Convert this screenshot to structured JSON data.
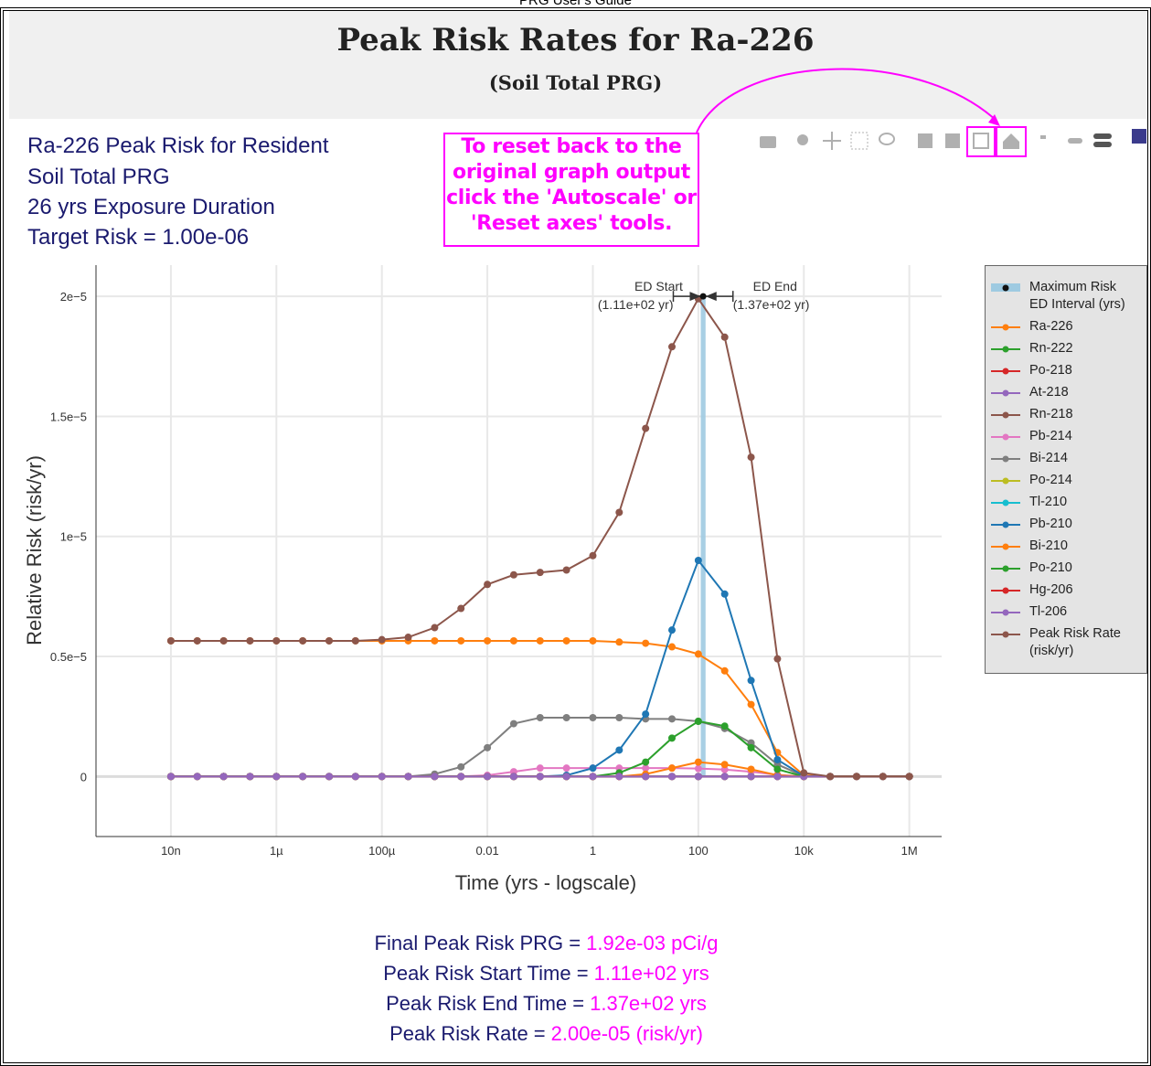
{
  "header": "PRG User's Guide",
  "title": "Peak Risk Rates for Ra-226",
  "subtitle": "(Soil Total PRG)",
  "info": [
    "Ra-226 Peak Risk for Resident",
    "Soil Total PRG",
    "26 yrs Exposure Duration",
    "Target Risk = 1.00e-06"
  ],
  "callout": [
    "To reset back to the",
    "original graph output",
    "click the 'Autoscale' or",
    "'Reset axes' tools."
  ],
  "summary": [
    {
      "label": "Final Peak Risk PRG =",
      "value": "1.92e-03 pCi/g"
    },
    {
      "label": "Peak Risk Start Time =",
      "value": "1.11e+02 yrs"
    },
    {
      "label": "Peak Risk End Time =",
      "value": "1.37e+02 yrs"
    },
    {
      "label": "Peak Risk Rate =",
      "value": "2.00e-05 (risk/yr)"
    }
  ],
  "chart_data": {
    "type": "line",
    "x_label": "Time (yrs - logscale)",
    "y_label": "Relative Risk (risk/yr)",
    "x_log": true,
    "grid": true,
    "xlim": [
      3.8e-10,
      4100000.0
    ],
    "ylim": [
      -2.5e-06,
      2.13e-05
    ],
    "xticks": [
      {
        "value": 1e-08,
        "label": "10n"
      },
      {
        "value": 1e-06,
        "label": "1µ"
      },
      {
        "value": 0.0001,
        "label": "100µ"
      },
      0.01,
      1,
      100,
      {
        "value": 10000,
        "label": "10k"
      },
      {
        "value": 1000000,
        "label": "1M"
      }
    ],
    "yticks": [
      0,
      {
        "value": 5e-06,
        "label": "0.5e−5"
      },
      {
        "value": 1e-05,
        "label": "1e−5"
      },
      {
        "value": 1.5e-05,
        "label": "1.5e−5"
      },
      {
        "value": 2e-05,
        "label": "2e−5"
      }
    ],
    "ed_interval": {
      "name": "Maximum Risk ED Interval (yrs)",
      "color": "#9ecae1",
      "x": [
        111,
        137
      ],
      "y": 2e-05,
      "start_label": [
        "ED Start",
        "(1.11e+02 yr)"
      ],
      "end_label": [
        "ED End",
        "(1.37e+02 yr)"
      ]
    },
    "x": [
      1e-08,
      3.16e-08,
      1e-07,
      3.16e-07,
      1e-06,
      3.16e-06,
      1e-05,
      3.16e-05,
      0.0001,
      0.000316,
      0.001,
      0.00316,
      0.01,
      0.0316,
      0.1,
      0.316,
      1,
      3.16,
      10,
      31.6,
      100,
      316,
      1000,
      3160,
      10000,
      31600,
      100000,
      316000,
      1000000
    ],
    "series": [
      {
        "name": "Ra-226",
        "color": "#ff7f0e",
        "values": [
          5.65e-06,
          5.65e-06,
          5.65e-06,
          5.65e-06,
          5.65e-06,
          5.65e-06,
          5.65e-06,
          5.65e-06,
          5.65e-06,
          5.65e-06,
          5.65e-06,
          5.65e-06,
          5.65e-06,
          5.65e-06,
          5.65e-06,
          5.65e-06,
          5.65e-06,
          5.6e-06,
          5.55e-06,
          5.4e-06,
          5.1e-06,
          4.4e-06,
          3e-06,
          1e-06,
          5e-08,
          0,
          0,
          0,
          0
        ]
      },
      {
        "name": "Rn-222",
        "color": "#2ca02c",
        "values": [
          0,
          0,
          0,
          0,
          0,
          0,
          0,
          0,
          0,
          0,
          0,
          0,
          0,
          0,
          0,
          0,
          0,
          0,
          0,
          0,
          0,
          0,
          0,
          0,
          0,
          0,
          0,
          0,
          0
        ]
      },
      {
        "name": "Po-218",
        "color": "#d62728",
        "values": [
          0,
          0,
          0,
          0,
          0,
          0,
          0,
          0,
          0,
          0,
          0,
          0,
          0,
          0,
          0,
          0,
          0,
          0,
          0,
          0,
          0,
          0,
          0,
          0,
          0,
          0,
          0,
          0,
          0
        ]
      },
      {
        "name": "At-218",
        "color": "#9467bd",
        "values": [
          0,
          0,
          0,
          0,
          0,
          0,
          0,
          0,
          0,
          0,
          0,
          0,
          0,
          0,
          0,
          0,
          0,
          0,
          0,
          0,
          0,
          0,
          0,
          0,
          0,
          0,
          0,
          0,
          0
        ]
      },
      {
        "name": "Rn-218",
        "color": "#8c564b",
        "values": [
          0,
          0,
          0,
          0,
          0,
          0,
          0,
          0,
          0,
          0,
          0,
          0,
          0,
          0,
          0,
          0,
          0,
          0,
          0,
          0,
          0,
          0,
          0,
          0,
          0,
          0,
          0,
          0,
          0
        ]
      },
      {
        "name": "Pb-214",
        "color": "#e377c2",
        "values": [
          0,
          0,
          0,
          0,
          0,
          0,
          0,
          0,
          0,
          0,
          0,
          0,
          5e-08,
          2e-07,
          3.5e-07,
          3.5e-07,
          3.5e-07,
          3.5e-07,
          3.5e-07,
          3.5e-07,
          3.3e-07,
          2.9e-07,
          2e-07,
          7e-08,
          0,
          0,
          0,
          0,
          0
        ]
      },
      {
        "name": "Bi-214",
        "color": "#7f7f7f",
        "values": [
          0,
          0,
          0,
          0,
          0,
          0,
          0,
          0,
          0,
          0,
          1e-07,
          4e-07,
          1.2e-06,
          2.2e-06,
          2.45e-06,
          2.45e-06,
          2.45e-06,
          2.45e-06,
          2.4e-06,
          2.4e-06,
          2.3e-06,
          2e-06,
          1.4e-06,
          5e-07,
          2e-08,
          0,
          0,
          0,
          0
        ]
      },
      {
        "name": "Po-214",
        "color": "#bcbd22",
        "values": [
          0,
          0,
          0,
          0,
          0,
          0,
          0,
          0,
          0,
          0,
          0,
          0,
          0,
          0,
          0,
          0,
          0,
          0,
          0,
          0,
          0,
          0,
          0,
          0,
          0,
          0,
          0,
          0,
          0
        ]
      },
      {
        "name": "Tl-210",
        "color": "#17becf",
        "values": [
          0,
          0,
          0,
          0,
          0,
          0,
          0,
          0,
          0,
          0,
          0,
          0,
          0,
          0,
          0,
          0,
          0,
          0,
          0,
          0,
          0,
          0,
          0,
          0,
          0,
          0,
          0,
          0,
          0
        ]
      },
      {
        "name": "Pb-210",
        "color": "#1f77b4",
        "values": [
          0,
          0,
          0,
          0,
          0,
          0,
          0,
          0,
          0,
          0,
          0,
          0,
          0,
          0,
          0,
          5e-08,
          3.5e-07,
          1.1e-06,
          2.6e-06,
          6.1e-06,
          9e-06,
          7.6e-06,
          4e-06,
          7e-07,
          2e-08,
          0,
          0,
          0,
          0
        ]
      },
      {
        "name": "Bi-210",
        "color": "#ff7f0e",
        "values": [
          0,
          0,
          0,
          0,
          0,
          0,
          0,
          0,
          0,
          0,
          0,
          0,
          0,
          0,
          0,
          0,
          0,
          0,
          1e-07,
          3.5e-07,
          6e-07,
          5e-07,
          3e-07,
          5e-08,
          0,
          0,
          0,
          0,
          0
        ]
      },
      {
        "name": "Po-210",
        "color": "#2ca02c",
        "values": [
          0,
          0,
          0,
          0,
          0,
          0,
          0,
          0,
          0,
          0,
          0,
          0,
          0,
          0,
          0,
          0,
          0,
          1.5e-07,
          6e-07,
          1.6e-06,
          2.3e-06,
          2.1e-06,
          1.2e-06,
          3e-07,
          0,
          0,
          0,
          0,
          0
        ]
      },
      {
        "name": "Hg-206",
        "color": "#d62728",
        "values": [
          0,
          0,
          0,
          0,
          0,
          0,
          0,
          0,
          0,
          0,
          0,
          0,
          0,
          0,
          0,
          0,
          0,
          0,
          0,
          0,
          0,
          0,
          0,
          0,
          0,
          0,
          0,
          0,
          0
        ]
      },
      {
        "name": "Tl-206",
        "color": "#9467bd",
        "values": [
          0,
          0,
          0,
          0,
          0,
          0,
          0,
          0,
          0,
          0,
          0,
          0,
          0,
          0,
          0,
          0,
          0,
          0,
          0,
          0,
          0,
          0,
          0,
          0,
          0,
          0,
          0,
          0,
          0
        ]
      },
      {
        "name": "Peak Risk Rate (risk/yr)",
        "color": "#8c564b",
        "values": [
          5.65e-06,
          5.65e-06,
          5.65e-06,
          5.65e-06,
          5.65e-06,
          5.65e-06,
          5.65e-06,
          5.65e-06,
          5.7e-06,
          5.8e-06,
          6.2e-06,
          7e-06,
          8e-06,
          8.4e-06,
          8.5e-06,
          8.6e-06,
          9.2e-06,
          1.1e-05,
          1.45e-05,
          1.79e-05,
          1.99e-05,
          1.83e-05,
          1.33e-05,
          4.9e-06,
          1.5e-07,
          0,
          0,
          0,
          0
        ]
      }
    ]
  }
}
